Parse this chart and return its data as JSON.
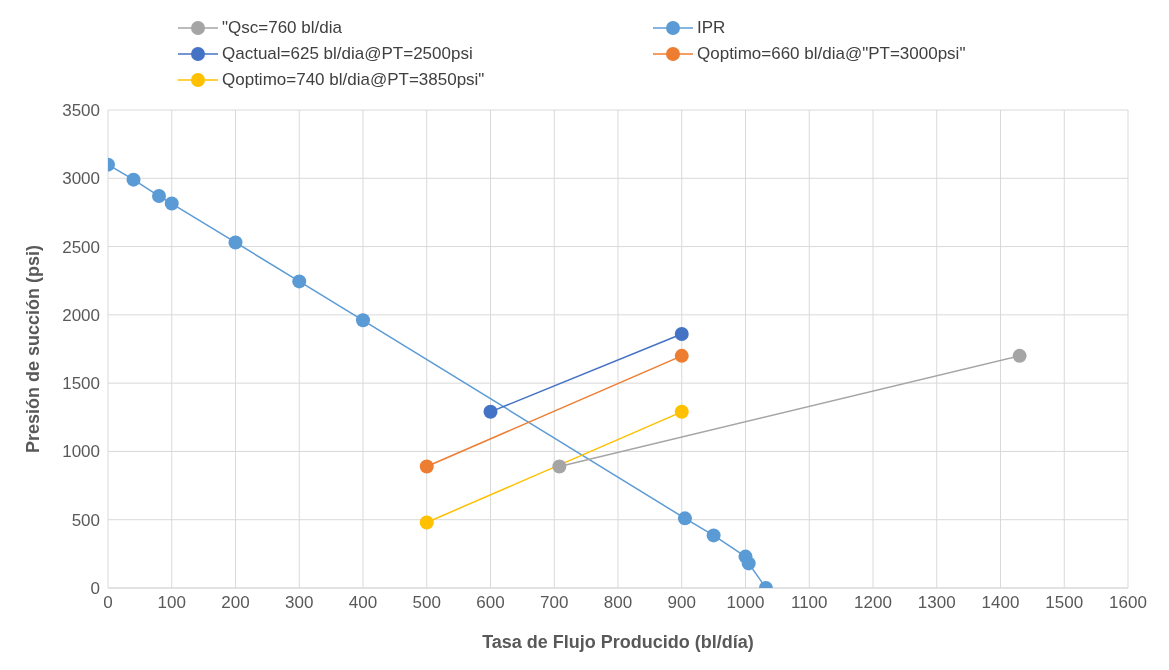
{
  "chart_data": {
    "type": "line",
    "xlabel": "Tasa de Flujo Producido (bl/día)",
    "ylabel": "Presión de succión  (psi)",
    "xlim": [
      0,
      1600
    ],
    "xticks": [
      0,
      100,
      200,
      300,
      400,
      500,
      600,
      700,
      800,
      900,
      1000,
      1100,
      1200,
      1300,
      1400,
      1500,
      1600
    ],
    "ylim": [
      0,
      3500
    ],
    "yticks": [
      0,
      500,
      1000,
      1500,
      2000,
      2500,
      3000,
      3500
    ],
    "grid": true,
    "legend": "top",
    "marker": "circle",
    "series": [
      {
        "name": "IPR",
        "color": "#5b9bd5",
        "x": [
          0,
          40,
          80,
          100,
          200,
          300,
          400,
          905,
          950,
          1000,
          1005,
          1032
        ],
        "values": [
          3100,
          2990,
          2870,
          2815,
          2530,
          2245,
          1960,
          510,
          385,
          230,
          180,
          0
        ]
      },
      {
        "name": "Qoptimo=660 bl/dia@\"PT=3000psi\"",
        "color": "#ed7d31",
        "x": [
          500,
          900
        ],
        "values": [
          890,
          1700
        ]
      },
      {
        "name": "\"Qsc=760 bl/dia",
        "color": "#a5a5a5",
        "x": [
          708,
          1430
        ],
        "values": [
          890,
          1700
        ]
      },
      {
        "name": "Qoptimo=740 bl/dia@PT=3850psi\"",
        "color": "#ffc000",
        "x": [
          500,
          900
        ],
        "values": [
          480,
          1290
        ]
      },
      {
        "name": "Qactual=625 bl/dia@PT=2500psi",
        "color": "#4472c4",
        "x": [
          600,
          900
        ],
        "values": [
          1290,
          1860
        ]
      }
    ]
  }
}
